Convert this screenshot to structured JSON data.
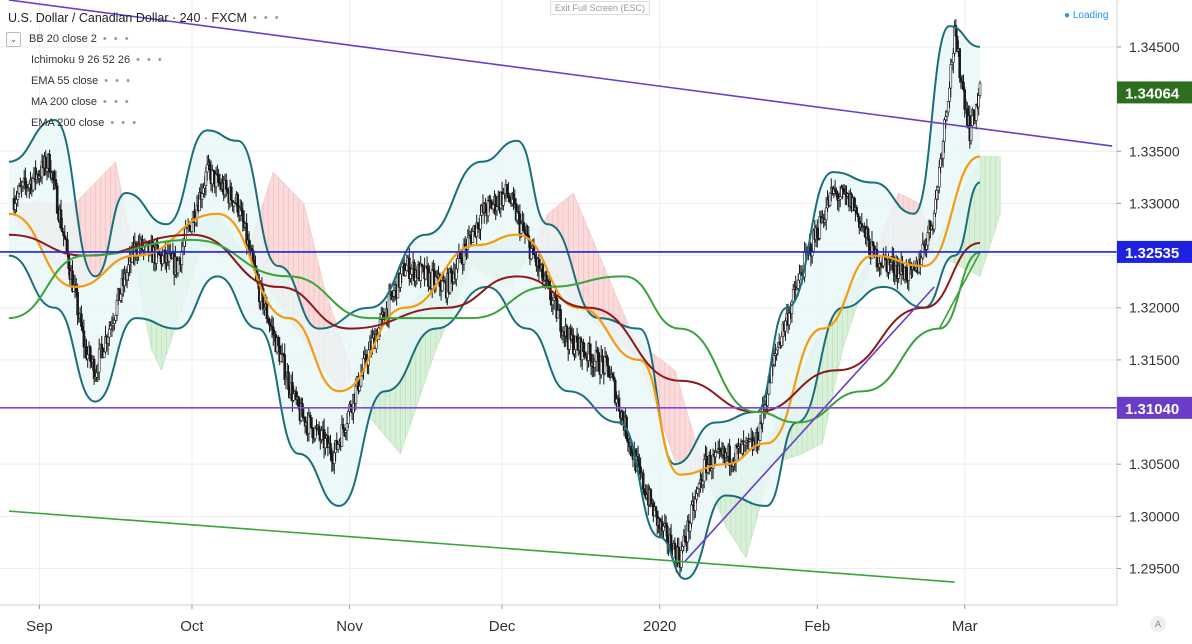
{
  "header": {
    "title": "U.S. Dollar / Canadian Dollar · 240 · FXCM",
    "indicators": [
      {
        "label": "BB 20 close 2"
      },
      {
        "label": "Ichimoku 9 26 52 26"
      },
      {
        "label": "EMA 55 close"
      },
      {
        "label": "MA 200 close"
      },
      {
        "label": "EMA 200 close"
      }
    ],
    "dots": "• • •",
    "collapse_icon": "chevron-down-icon"
  },
  "toolbar": {
    "exit_fullscreen": "Exit Full Screen (ESC)"
  },
  "status": {
    "loading": "● Loading"
  },
  "brand": {
    "label": "A"
  },
  "colors": {
    "candle": "#1a1a1a",
    "bb": "#1b6f7a",
    "bb_fill": "#e8f6f8",
    "ema55": "#f39c12",
    "ma200": "#8b1a1a",
    "ema200": "#3aa33a",
    "cloud_bull": "#d8f0d8",
    "cloud_bear": "#fadada",
    "hline_blue": "#1e22e0",
    "hline_purple": "#7b4bd6",
    "trend_purple": "#6a3cc8",
    "trend_green": "#3aa33a",
    "label_current": "#2e6f1f",
    "label_blue": "#1e22e0",
    "label_purple": "#6a3cc8",
    "grid": "#eeeeee"
  },
  "chart_data": {
    "type": "candlestick",
    "symbol": "U.S. Dollar / Canadian Dollar",
    "timeframe": "240",
    "source": "FXCM",
    "x_labels": [
      "Sep",
      "Oct",
      "Nov",
      "Dec",
      "2020",
      "Feb",
      "Mar"
    ],
    "y_ticks": [
      1.345,
      1.335,
      1.33,
      1.325,
      1.32,
      1.315,
      1.305,
      1.3,
      1.295
    ],
    "y_tick_labels": [
      "1.34500",
      "1.33500",
      "1.33000",
      "1.32500",
      "1.32000",
      "1.31500",
      "1.30500",
      "1.30000",
      "1.29500"
    ],
    "ylim": [
      1.2915,
      1.3495
    ],
    "price_labels": [
      {
        "value": 1.34064,
        "text": "1.34064",
        "role": "current"
      },
      {
        "value": 1.32535,
        "text": "1.32535",
        "role": "horizontal-line"
      },
      {
        "value": 1.3104,
        "text": "1.31040",
        "role": "horizontal-line"
      }
    ],
    "price_path": [
      [
        "2019-08-26",
        1.33
      ],
      [
        "2019-09-03",
        1.334
      ],
      [
        "2019-09-10",
        1.316
      ],
      [
        "2019-09-12",
        1.314
      ],
      [
        "2019-09-20",
        1.326
      ],
      [
        "2019-09-28",
        1.324
      ],
      [
        "2019-10-04",
        1.333
      ],
      [
        "2019-10-10",
        1.33
      ],
      [
        "2019-10-14",
        1.322
      ],
      [
        "2019-10-22",
        1.31
      ],
      [
        "2019-10-29",
        1.306
      ],
      [
        "2019-11-05",
        1.316
      ],
      [
        "2019-11-12",
        1.324
      ],
      [
        "2019-11-20",
        1.322
      ],
      [
        "2019-11-27",
        1.329
      ],
      [
        "2019-12-02",
        1.331
      ],
      [
        "2019-12-08",
        1.324
      ],
      [
        "2019-12-14",
        1.317
      ],
      [
        "2019-12-22",
        1.314
      ],
      [
        "2019-12-28",
        1.304
      ],
      [
        "2020-01-01",
        1.299
      ],
      [
        "2020-01-05",
        1.296
      ],
      [
        "2020-01-10",
        1.305
      ],
      [
        "2020-01-16",
        1.306
      ],
      [
        "2020-01-20",
        1.307
      ],
      [
        "2020-01-24",
        1.316
      ],
      [
        "2020-01-30",
        1.325
      ],
      [
        "2020-02-04",
        1.331
      ],
      [
        "2020-02-08",
        1.33
      ],
      [
        "2020-02-12",
        1.325
      ],
      [
        "2020-02-20",
        1.323
      ],
      [
        "2020-02-24",
        1.329
      ],
      [
        "2020-02-28",
        1.346
      ],
      [
        "2020-03-02",
        1.337
      ],
      [
        "2020-03-04",
        1.3406
      ]
    ],
    "series": [
      {
        "name": "EMA 55 close",
        "values": [
          [
            "2019-08-26",
            1.329
          ],
          [
            "2019-09-08",
            1.322
          ],
          [
            "2019-09-20",
            1.325
          ],
          [
            "2019-10-06",
            1.329
          ],
          [
            "2019-10-20",
            1.319
          ],
          [
            "2019-10-30",
            1.312
          ],
          [
            "2019-11-12",
            1.32
          ],
          [
            "2019-11-26",
            1.326
          ],
          [
            "2019-12-04",
            1.327
          ],
          [
            "2019-12-16",
            1.32
          ],
          [
            "2019-12-28",
            1.315
          ],
          [
            "2020-01-05",
            1.304
          ],
          [
            "2020-01-14",
            1.305
          ],
          [
            "2020-01-22",
            1.307
          ],
          [
            "2020-02-02",
            1.318
          ],
          [
            "2020-02-12",
            1.325
          ],
          [
            "2020-02-22",
            1.324
          ],
          [
            "2020-03-04",
            1.3345
          ]
        ]
      },
      {
        "name": "MA 200 close",
        "values": [
          [
            "2019-08-26",
            1.327
          ],
          [
            "2019-09-10",
            1.325
          ],
          [
            "2019-10-01",
            1.327
          ],
          [
            "2019-10-18",
            1.322
          ],
          [
            "2019-11-01",
            1.318
          ],
          [
            "2019-11-20",
            1.32
          ],
          [
            "2019-12-04",
            1.323
          ],
          [
            "2019-12-18",
            1.32
          ],
          [
            "2020-01-05",
            1.313
          ],
          [
            "2020-01-20",
            1.31
          ],
          [
            "2020-02-05",
            1.314
          ],
          [
            "2020-02-22",
            1.32
          ],
          [
            "2020-03-04",
            1.3262
          ]
        ]
      },
      {
        "name": "EMA 200 close",
        "values": [
          [
            "2019-08-26",
            1.319
          ],
          [
            "2019-09-10",
            1.325
          ],
          [
            "2019-10-01",
            1.3265
          ],
          [
            "2019-10-20",
            1.323
          ],
          [
            "2019-11-05",
            1.319
          ],
          [
            "2019-11-25",
            1.319
          ],
          [
            "2019-12-10",
            1.322
          ],
          [
            "2019-12-25",
            1.323
          ],
          [
            "2020-01-05",
            1.318
          ],
          [
            "2020-01-20",
            1.31
          ],
          [
            "2020-01-28",
            1.309
          ],
          [
            "2020-02-10",
            1.312
          ],
          [
            "2020-02-25",
            1.318
          ],
          [
            "2020-03-04",
            1.3253
          ]
        ]
      }
    ],
    "bollinger_bands": {
      "upper": [
        [
          "2019-08-26",
          1.334
        ],
        [
          "2019-09-04",
          1.338
        ],
        [
          "2019-09-12",
          1.323
        ],
        [
          "2019-09-18",
          1.331
        ],
        [
          "2019-09-26",
          1.328
        ],
        [
          "2019-10-04",
          1.337
        ],
        [
          "2019-10-10",
          1.336
        ],
        [
          "2019-10-18",
          1.324
        ],
        [
          "2019-10-26",
          1.318
        ],
        [
          "2019-11-05",
          1.32
        ],
        [
          "2019-11-16",
          1.327
        ],
        [
          "2019-11-27",
          1.334
        ],
        [
          "2019-12-04",
          1.336
        ],
        [
          "2019-12-10",
          1.328
        ],
        [
          "2019-12-20",
          1.319
        ],
        [
          "2019-12-28",
          1.318
        ],
        [
          "2020-01-04",
          1.305
        ],
        [
          "2020-01-12",
          1.309
        ],
        [
          "2020-01-20",
          1.31
        ],
        [
          "2020-01-26",
          1.32
        ],
        [
          "2020-02-04",
          1.333
        ],
        [
          "2020-02-12",
          1.332
        ],
        [
          "2020-02-20",
          1.329
        ],
        [
          "2020-02-27",
          1.347
        ],
        [
          "2020-03-04",
          1.345
        ]
      ],
      "lower": [
        [
          "2019-08-26",
          1.325
        ],
        [
          "2019-09-04",
          1.32
        ],
        [
          "2019-09-12",
          1.311
        ],
        [
          "2019-09-20",
          1.319
        ],
        [
          "2019-09-28",
          1.318
        ],
        [
          "2019-10-06",
          1.323
        ],
        [
          "2019-10-14",
          1.318
        ],
        [
          "2019-10-22",
          1.306
        ],
        [
          "2019-10-30",
          1.301
        ],
        [
          "2019-11-08",
          1.312
        ],
        [
          "2019-11-18",
          1.318
        ],
        [
          "2019-11-28",
          1.322
        ],
        [
          "2019-12-06",
          1.318
        ],
        [
          "2019-12-14",
          1.312
        ],
        [
          "2019-12-24",
          1.309
        ],
        [
          "2020-01-01",
          1.298
        ],
        [
          "2020-01-06",
          1.294
        ],
        [
          "2020-01-14",
          1.302
        ],
        [
          "2020-01-22",
          1.301
        ],
        [
          "2020-01-28",
          1.309
        ],
        [
          "2020-02-06",
          1.32
        ],
        [
          "2020-02-14",
          1.322
        ],
        [
          "2020-02-22",
          1.32
        ],
        [
          "2020-02-28",
          1.325
        ],
        [
          "2020-03-04",
          1.332
        ]
      ]
    },
    "trendlines": [
      {
        "color": "purple",
        "from": [
          "2019-08-26",
          1.3495
        ],
        "to": [
          "2020-03-30",
          1.3355
        ]
      },
      {
        "color": "green",
        "from": [
          "2019-08-26",
          1.3005
        ],
        "to": [
          "2020-02-28",
          1.2937
        ]
      },
      {
        "color": "purple",
        "from": [
          "2020-01-06",
          1.2957
        ],
        "to": [
          "2020-02-24",
          1.322
        ]
      },
      {
        "color": "green",
        "from": [
          "2020-02-25",
          1.318
        ],
        "to": [
          "2020-03-04",
          1.3253
        ]
      }
    ]
  }
}
